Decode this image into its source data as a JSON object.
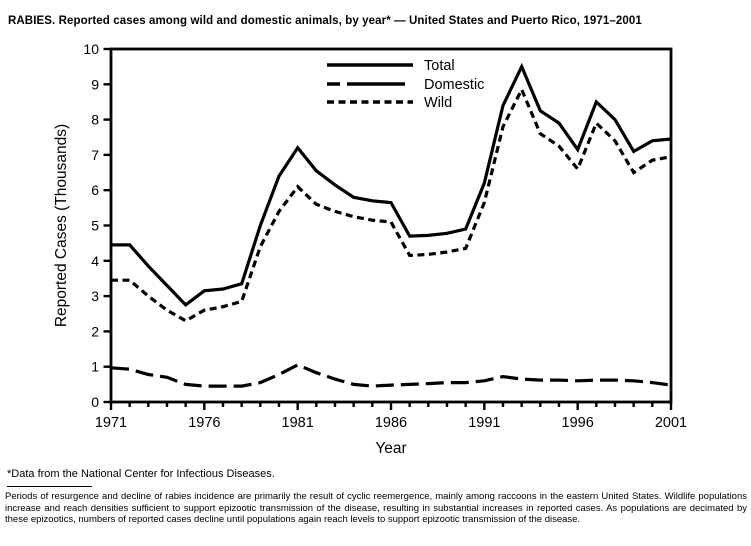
{
  "title": "RABIES. Reported cases among wild and domestic animals, by year* — United States and Puerto Rico, 1971–2001",
  "footnote": "*Data from the National Center for Infectious Diseases.",
  "note_paragraph": "Periods of resurgence and decline of rabies incidence are primarily the result of cyclic reemergence, mainly among raccoons in the eastern United States. Wildlife populations increase and reach densities sufficient to support epizootic transmission of the disease, resulting in substantial increases in reported cases. As populations are decimated by these epizootics, numbers of reported cases decline until populations again reach levels to support epizootic transmission of the disease.",
  "chart_data": {
    "type": "line",
    "title": "",
    "xlabel": "Year",
    "ylabel": "Reported Cases (Thousands)",
    "xlim": [
      1971,
      2001
    ],
    "ylim": [
      0,
      10
    ],
    "grid": false,
    "legend_position": "top-center-inside",
    "line_color": "#000000",
    "background": "#ffffff",
    "y_ticks": [
      0,
      1,
      2,
      3,
      4,
      5,
      6,
      7,
      8,
      9,
      10
    ],
    "x_major_ticks": [
      1971,
      1976,
      1981,
      1986,
      1991,
      1996,
      2001
    ],
    "x_minor_tick_interval": 1,
    "x": [
      1971,
      1972,
      1973,
      1974,
      1975,
      1976,
      1977,
      1978,
      1979,
      1980,
      1981,
      1982,
      1983,
      1984,
      1985,
      1986,
      1987,
      1988,
      1989,
      1990,
      1991,
      1992,
      1993,
      1994,
      1995,
      1996,
      1997,
      1998,
      1999,
      2000,
      2001
    ],
    "series": [
      {
        "name": "Total",
        "dash": "solid",
        "values": [
          4.45,
          4.45,
          3.85,
          3.3,
          2.75,
          3.15,
          3.2,
          3.35,
          5.0,
          6.4,
          7.2,
          6.55,
          6.15,
          5.8,
          5.7,
          5.65,
          4.7,
          4.72,
          4.78,
          4.9,
          6.2,
          8.4,
          9.5,
          8.25,
          7.9,
          7.15,
          8.5,
          8.0,
          7.1,
          7.4,
          7.45
        ]
      },
      {
        "name": "Domestic",
        "dash": "long-dash",
        "values": [
          0.97,
          0.93,
          0.78,
          0.7,
          0.5,
          0.45,
          0.45,
          0.45,
          0.55,
          0.78,
          1.05,
          0.83,
          0.65,
          0.5,
          0.45,
          0.48,
          0.5,
          0.52,
          0.55,
          0.55,
          0.6,
          0.72,
          0.65,
          0.62,
          0.62,
          0.6,
          0.62,
          0.62,
          0.6,
          0.55,
          0.48
        ]
      },
      {
        "name": "Wild",
        "dash": "short-dash",
        "values": [
          3.45,
          3.45,
          3.0,
          2.6,
          2.3,
          2.6,
          2.7,
          2.85,
          4.4,
          5.4,
          6.1,
          5.6,
          5.4,
          5.25,
          5.15,
          5.1,
          4.15,
          4.18,
          4.25,
          4.35,
          5.65,
          7.8,
          8.85,
          7.6,
          7.25,
          6.6,
          7.9,
          7.4,
          6.5,
          6.85,
          6.95
        ]
      }
    ]
  }
}
